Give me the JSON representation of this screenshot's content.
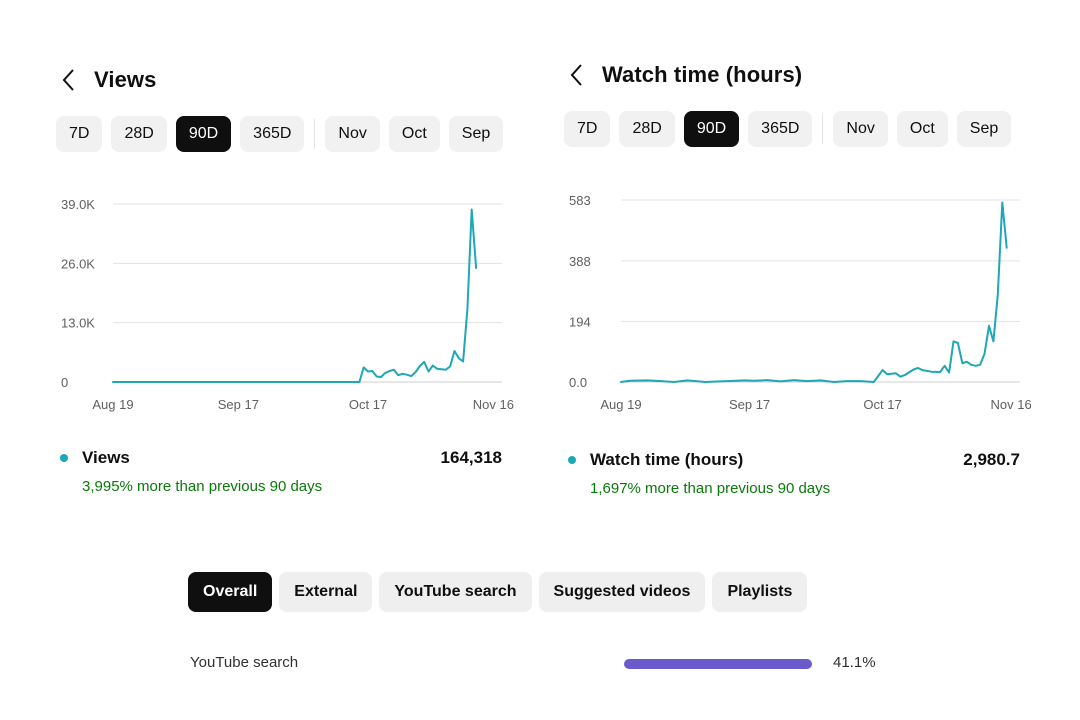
{
  "colors": {
    "accent": "#1ea7b5",
    "positive": "#0a7a0a",
    "source_bar": "#6a5acd"
  },
  "views_panel": {
    "title": "Views",
    "back_icon": "chevron-left-icon",
    "chips": [
      {
        "label": "7D",
        "active": false
      },
      {
        "label": "28D",
        "active": false
      },
      {
        "label": "90D",
        "active": true
      },
      {
        "label": "365D",
        "active": false
      }
    ],
    "month_chips": [
      {
        "label": "Nov"
      },
      {
        "label": "Oct"
      },
      {
        "label": "Sep"
      }
    ],
    "metric_label": "Views",
    "metric_value": "164,318",
    "change_text": "3,995% more than previous 90 days"
  },
  "watch_panel": {
    "title": "Watch time (hours)",
    "back_icon": "chevron-left-icon",
    "chips": [
      {
        "label": "7D",
        "active": false
      },
      {
        "label": "28D",
        "active": false
      },
      {
        "label": "90D",
        "active": true
      },
      {
        "label": "365D",
        "active": false
      }
    ],
    "month_chips": [
      {
        "label": "Nov"
      },
      {
        "label": "Oct"
      },
      {
        "label": "Sep"
      }
    ],
    "metric_label": "Watch time (hours)",
    "metric_value": "2,980.7",
    "change_text": "1,697% more than previous 90 days"
  },
  "chart_data": [
    {
      "type": "line",
      "x_labels": [
        "Aug 19",
        "Sep 17",
        "Oct 17",
        "Nov 16"
      ],
      "x_label_days": [
        0,
        29,
        59,
        88
      ],
      "x_range": [
        0,
        90
      ],
      "y_ticks": [
        "0",
        "13.0K",
        "26.0K",
        "39.0K"
      ],
      "y_tick_values": [
        0,
        13000,
        26000,
        39000
      ],
      "ylim": [
        0,
        39000
      ],
      "grid": true,
      "series": [
        {
          "color": "#1ea7b5",
          "points": [
            [
              0,
              0
            ],
            [
              20,
              0
            ],
            [
              40,
              0
            ],
            [
              57,
              0
            ],
            [
              58,
              3200
            ],
            [
              59,
              2300
            ],
            [
              60,
              2400
            ],
            [
              61,
              1200
            ],
            [
              62,
              1100
            ],
            [
              63,
              2000
            ],
            [
              64,
              2400
            ],
            [
              65,
              2700
            ],
            [
              66,
              1500
            ],
            [
              67,
              1800
            ],
            [
              68,
              1600
            ],
            [
              69,
              1300
            ],
            [
              70,
              2200
            ],
            [
              71,
              3500
            ],
            [
              72,
              4400
            ],
            [
              73,
              2300
            ],
            [
              74,
              3600
            ],
            [
              75,
              2900
            ],
            [
              76,
              2800
            ],
            [
              77,
              2700
            ],
            [
              78,
              3400
            ],
            [
              79,
              6800
            ],
            [
              80,
              5200
            ],
            [
              81,
              4500
            ],
            [
              82,
              16000
            ],
            [
              83,
              37800
            ],
            [
              84,
              25000
            ]
          ]
        }
      ]
    },
    {
      "type": "line",
      "x_labels": [
        "Aug 19",
        "Sep 17",
        "Oct 17",
        "Nov 16"
      ],
      "x_label_days": [
        0,
        29,
        59,
        88
      ],
      "x_range": [
        0,
        90
      ],
      "y_ticks": [
        "0.0",
        "194",
        "388",
        "583"
      ],
      "y_tick_values": [
        0,
        194,
        388,
        583
      ],
      "ylim": [
        0,
        583
      ],
      "grid": true,
      "series": [
        {
          "color": "#1ea7b5",
          "points": [
            [
              0,
              0
            ],
            [
              2,
              4
            ],
            [
              6,
              5
            ],
            [
              9,
              3
            ],
            [
              12,
              0
            ],
            [
              15,
              5
            ],
            [
              19,
              0
            ],
            [
              28,
              5
            ],
            [
              30,
              4
            ],
            [
              33,
              6
            ],
            [
              36,
              2
            ],
            [
              39,
              6
            ],
            [
              42,
              3
            ],
            [
              45,
              5
            ],
            [
              48,
              0
            ],
            [
              51,
              3
            ],
            [
              54,
              3
            ],
            [
              57,
              0
            ],
            [
              59,
              38
            ],
            [
              60,
              25
            ],
            [
              62,
              28
            ],
            [
              63,
              17
            ],
            [
              64,
              22
            ],
            [
              66,
              40
            ],
            [
              67,
              45
            ],
            [
              68,
              38
            ],
            [
              70,
              33
            ],
            [
              72,
              32
            ],
            [
              73,
              52
            ],
            [
              74,
              30
            ],
            [
              75,
              130
            ],
            [
              76,
              125
            ],
            [
              77,
              60
            ],
            [
              78,
              65
            ],
            [
              79,
              55
            ],
            [
              80,
              52
            ],
            [
              81,
              55
            ],
            [
              82,
              90
            ],
            [
              83,
              180
            ],
            [
              84,
              130
            ],
            [
              85,
              280
            ],
            [
              86,
              575
            ],
            [
              87,
              430
            ]
          ]
        }
      ]
    }
  ],
  "traffic_tabs": [
    {
      "label": "Overall",
      "active": true
    },
    {
      "label": "External",
      "active": false
    },
    {
      "label": "YouTube search",
      "active": false
    },
    {
      "label": "Suggested videos",
      "active": false
    },
    {
      "label": "Playlists",
      "active": false
    }
  ],
  "source_row": {
    "label": "YouTube search",
    "percent_text": "41.1%",
    "fraction": 0.96
  }
}
